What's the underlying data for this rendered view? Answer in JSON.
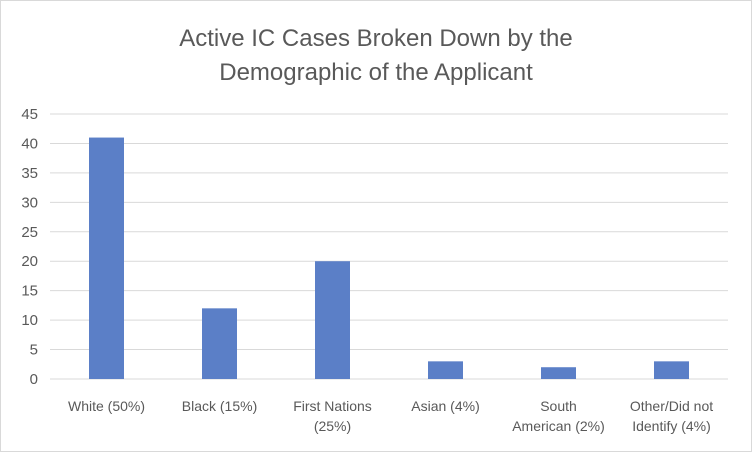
{
  "chart_data": {
    "type": "bar",
    "title": [
      "Active IC Cases Broken Down by the",
      "Demographic of the Applicant"
    ],
    "categories": [
      [
        "White (50%)"
      ],
      [
        "Black (15%)"
      ],
      [
        "First Nations",
        "(25%)"
      ],
      [
        "Asian (4%)"
      ],
      [
        "South",
        "American (2%)"
      ],
      [
        "Other/Did not",
        "Identify (4%)"
      ]
    ],
    "values": [
      41,
      12,
      20,
      3,
      2,
      3
    ],
    "ylim": [
      0,
      45
    ],
    "yticks": [
      0,
      5,
      10,
      15,
      20,
      25,
      30,
      35,
      40,
      45
    ],
    "grid": true,
    "legend": "none",
    "bar_color": "#5b7fc7",
    "grid_color": "#d9d9d9",
    "text_color": "#595959"
  }
}
